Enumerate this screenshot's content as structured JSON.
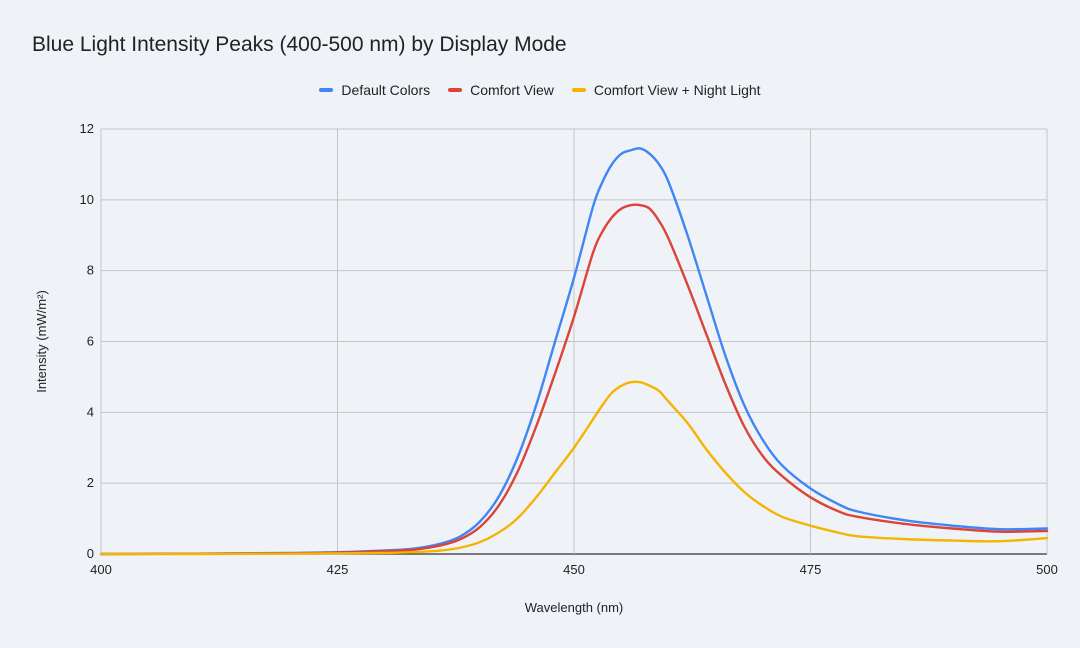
{
  "chart_data": {
    "type": "line",
    "title": "Blue Light Intensity Peaks (400-500 nm) by Display Mode",
    "xlabel": "Wavelength (nm)",
    "ylabel": "Intensity (mW/m²)",
    "xlim": [
      400,
      500
    ],
    "ylim": [
      0,
      12
    ],
    "x_ticks": [
      400,
      425,
      450,
      475,
      500
    ],
    "y_ticks": [
      0,
      2,
      4,
      6,
      8,
      10,
      12
    ],
    "grid": true,
    "legend_position": "top-center",
    "x": [
      400,
      410,
      420,
      425,
      430,
      433,
      436,
      438,
      440,
      442,
      444,
      446,
      448,
      450,
      452,
      453,
      454,
      455,
      456,
      457,
      458,
      459,
      460,
      462,
      464,
      466,
      468,
      470,
      472,
      475,
      478,
      480,
      485,
      490,
      495,
      500
    ],
    "series": [
      {
        "name": "Default Colors",
        "color": "#4285f4",
        "values": [
          0.0,
          0.01,
          0.03,
          0.05,
          0.1,
          0.15,
          0.3,
          0.5,
          0.9,
          1.6,
          2.7,
          4.2,
          6.0,
          7.8,
          9.8,
          10.5,
          11.0,
          11.3,
          11.4,
          11.45,
          11.3,
          11.0,
          10.5,
          9.0,
          7.3,
          5.6,
          4.2,
          3.2,
          2.5,
          1.85,
          1.4,
          1.2,
          0.95,
          0.8,
          0.7,
          0.72
        ]
      },
      {
        "name": "Comfort View",
        "color": "#db4437",
        "values": [
          0.0,
          0.01,
          0.02,
          0.04,
          0.08,
          0.12,
          0.25,
          0.42,
          0.75,
          1.35,
          2.3,
          3.6,
          5.1,
          6.7,
          8.5,
          9.1,
          9.5,
          9.75,
          9.85,
          9.85,
          9.75,
          9.4,
          8.9,
          7.6,
          6.2,
          4.8,
          3.6,
          2.75,
          2.2,
          1.6,
          1.2,
          1.05,
          0.85,
          0.72,
          0.63,
          0.65
        ]
      },
      {
        "name": "Comfort View + Night Light",
        "color": "#f4b400",
        "values": [
          0.0,
          0.0,
          0.01,
          0.02,
          0.03,
          0.05,
          0.1,
          0.18,
          0.33,
          0.6,
          1.0,
          1.6,
          2.3,
          3.0,
          3.8,
          4.2,
          4.55,
          4.75,
          4.85,
          4.85,
          4.75,
          4.6,
          4.3,
          3.7,
          2.95,
          2.3,
          1.75,
          1.35,
          1.05,
          0.8,
          0.6,
          0.5,
          0.42,
          0.38,
          0.36,
          0.45
        ]
      }
    ]
  }
}
